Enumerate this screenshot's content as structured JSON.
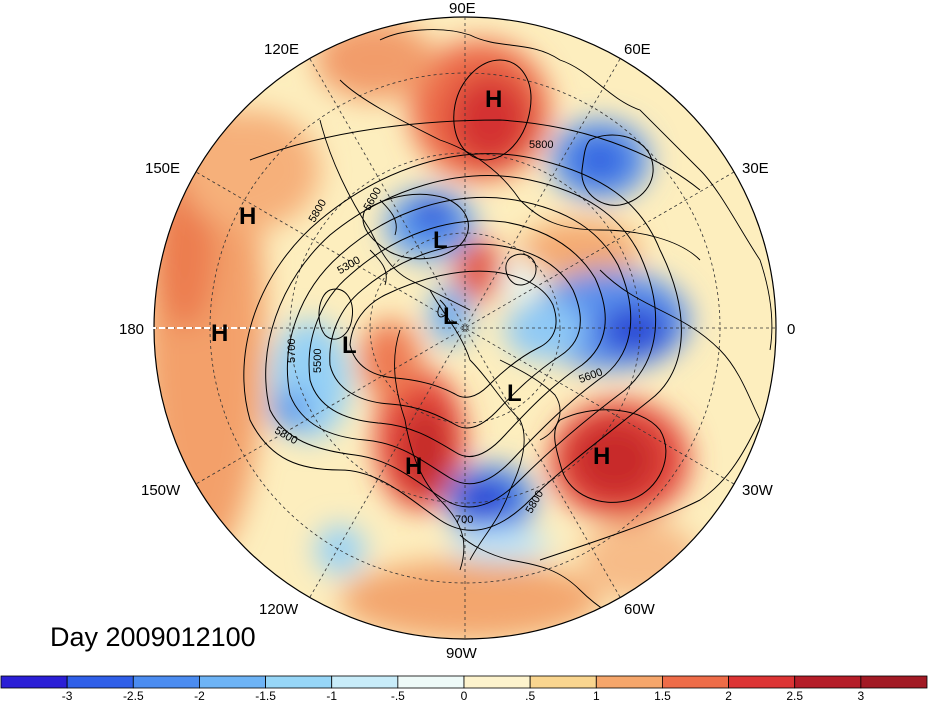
{
  "map": {
    "projection": "north polar stereographic",
    "longitude_labels": [
      "90E",
      "60E",
      "30E",
      "0",
      "30W",
      "60W",
      "90W",
      "120W",
      "150W",
      "180",
      "150E",
      "120E"
    ],
    "pressure_centers": [
      "H",
      "H",
      "H",
      "H",
      "H",
      "L",
      "L",
      "L",
      "L"
    ],
    "contour_labels": [
      "5800",
      "5800",
      "5600",
      "5300",
      "5700",
      "5500",
      "5800",
      "5600",
      "5800",
      "700"
    ],
    "date_label": "Day 2009012100"
  },
  "colorbar": {
    "tick_labels": [
      "-3",
      "-2.5",
      "-2",
      "-1.5",
      "-1",
      "-.5",
      "0",
      ".5",
      "1",
      "1.5",
      "2",
      "2.5",
      "3"
    ],
    "colors": [
      "#2b1fd6",
      "#2f5fe8",
      "#4b8cf0",
      "#6db3f5",
      "#97d6f7",
      "#c8ecf9",
      "#eefaf8",
      "#fdf3cd",
      "#f9d58f",
      "#f5a66b",
      "#ee6c48",
      "#dc3434",
      "#b51d28",
      "#a21a24"
    ]
  }
}
